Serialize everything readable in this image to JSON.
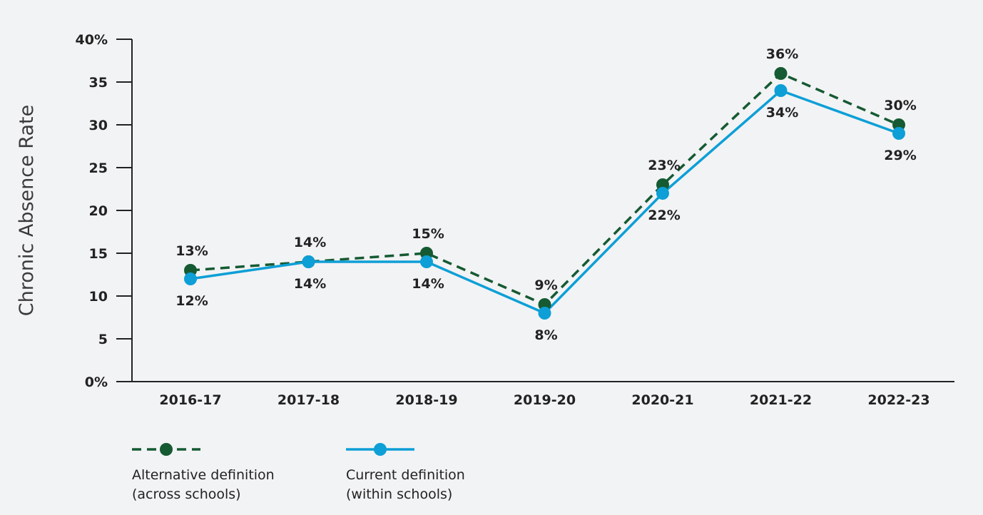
{
  "chart_data": {
    "type": "line",
    "ylabel": "Chronic Absence Rate",
    "ylim": [
      0,
      40
    ],
    "yticks": [
      0,
      5,
      10,
      15,
      20,
      25,
      30,
      35,
      40
    ],
    "ytick_labels": [
      "0%",
      "5",
      "10",
      "15",
      "20",
      "25",
      "30",
      "35",
      "40%"
    ],
    "categories": [
      "2016-17",
      "2017-18",
      "2018-19",
      "2019-20",
      "2020-21",
      "2021-22",
      "2022-23"
    ],
    "series": [
      {
        "name": "Alternative definition (across schools)",
        "legend_lines": [
          "Alternative definition",
          "(across schools)"
        ],
        "values": [
          13,
          14,
          15,
          9,
          23,
          36,
          30
        ],
        "labels": [
          "13%",
          "14%",
          "15%",
          "9%",
          "23%",
          "36%",
          "30%"
        ],
        "color": "#155a32",
        "style": "dashed"
      },
      {
        "name": "Current definition (within schools)",
        "legend_lines": [
          "Current definition",
          "(within schools)"
        ],
        "values": [
          12,
          14,
          14,
          8,
          22,
          34,
          29
        ],
        "labels": [
          "12%",
          "14%",
          "14%",
          "8%",
          "22%",
          "34%",
          "29%"
        ],
        "color": "#0d9fd6",
        "style": "solid"
      }
    ],
    "grid": false,
    "legend_position": "bottom-left"
  }
}
